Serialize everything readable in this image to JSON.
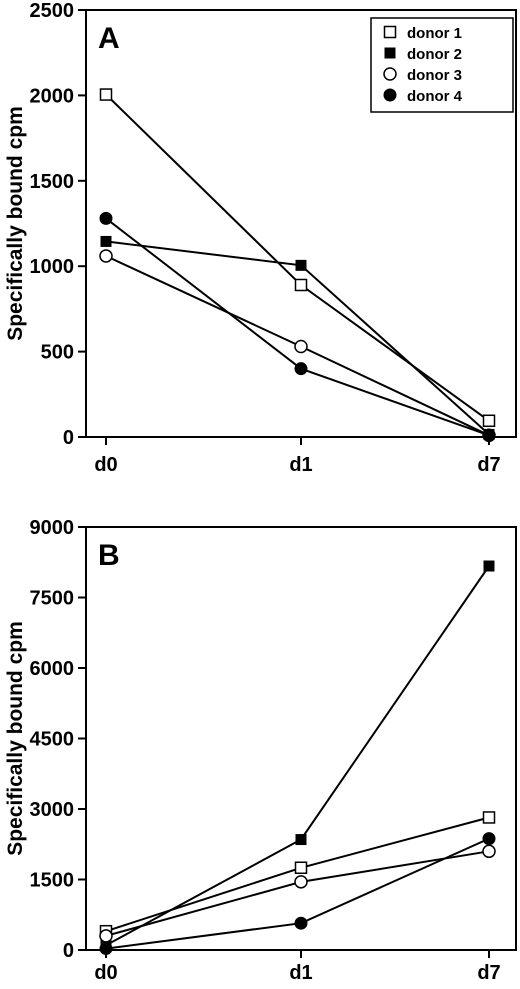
{
  "chart_data": [
    {
      "type": "line",
      "panel_label": "A",
      "ylabel": "Specifically bound cpm",
      "categories": [
        "d0",
        "d1",
        "d7"
      ],
      "yticks": [
        0,
        500,
        1000,
        1500,
        2000,
        2500
      ],
      "ylim": [
        0,
        2500
      ],
      "legend_position": "top-right",
      "series": [
        {
          "name": "donor 1",
          "marker": "open-square",
          "values": [
            2005,
            890,
            95
          ]
        },
        {
          "name": "donor 2",
          "marker": "filled-square",
          "values": [
            1145,
            1005,
            15
          ]
        },
        {
          "name": "donor 3",
          "marker": "open-circle",
          "values": [
            1060,
            530,
            10
          ]
        },
        {
          "name": "donor 4",
          "marker": "filled-circle",
          "values": [
            1280,
            400,
            10
          ]
        }
      ]
    },
    {
      "type": "line",
      "panel_label": "B",
      "ylabel": "Specifically bound cpm",
      "categories": [
        "d0",
        "d1",
        "d7"
      ],
      "yticks": [
        0,
        1500,
        3000,
        4500,
        6000,
        7500,
        9000
      ],
      "ylim": [
        0,
        9000
      ],
      "series": [
        {
          "name": "donor 1",
          "marker": "open-square",
          "values": [
            400,
            1750,
            2820
          ]
        },
        {
          "name": "donor 2",
          "marker": "filled-square",
          "values": [
            100,
            2350,
            8170
          ]
        },
        {
          "name": "donor 3",
          "marker": "open-circle",
          "values": [
            300,
            1450,
            2100
          ]
        },
        {
          "name": "donor 4",
          "marker": "filled-circle",
          "values": [
            30,
            570,
            2370
          ]
        }
      ]
    }
  ]
}
